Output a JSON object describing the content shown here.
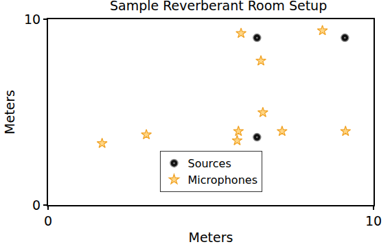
{
  "chart_data": {
    "type": "scatter",
    "title": "Sample Reverberant Room Setup",
    "x_label": "Meters",
    "y_label": "Meters",
    "xlim": [
      0,
      10
    ],
    "ylim": [
      0,
      10
    ],
    "xticks": [
      0,
      10
    ],
    "yticks": [
      0,
      10
    ],
    "grid": false,
    "legend": "lower center",
    "series": [
      {
        "name": "Sources",
        "color": "#111111",
        "marker": "circle-dot",
        "x": [
          6.42,
          9.12,
          6.42
        ],
        "values": [
          9.0,
          9.0,
          3.65
        ]
      },
      {
        "name": "Microphones",
        "color": "#f0a020",
        "marker": "star",
        "x": [
          1.66,
          3.02,
          5.81,
          5.85,
          5.93,
          6.54,
          6.6,
          7.19,
          8.43,
          9.14
        ],
        "values": [
          3.32,
          3.79,
          3.47,
          3.97,
          9.24,
          7.76,
          4.98,
          3.97,
          9.39,
          3.97
        ]
      }
    ]
  }
}
